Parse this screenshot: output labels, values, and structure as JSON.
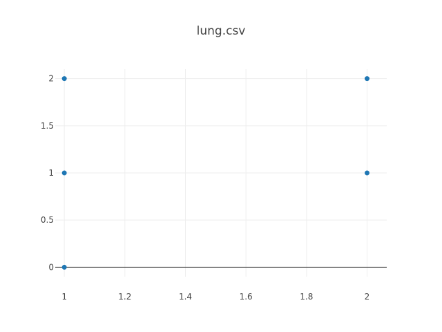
{
  "chart_data": {
    "type": "scatter",
    "title": "lung.csv",
    "xlabel": "",
    "ylabel": "",
    "xlim": [
      0.97,
      2.065
    ],
    "ylim": [
      -0.1,
      2.1
    ],
    "xticks": [
      1,
      1.2,
      1.4,
      1.6,
      1.8,
      2
    ],
    "xtick_labels": [
      "1",
      "1.2",
      "1.4",
      "1.6",
      "1.8",
      "2"
    ],
    "yticks": [
      0,
      0.5,
      1,
      1.5,
      2
    ],
    "ytick_labels": [
      "0",
      "0.5",
      "1",
      "1.5",
      "2"
    ],
    "grid": true,
    "legend": "none",
    "marker_color": "#1f77b4",
    "series": [
      {
        "points": [
          {
            "x": 1,
            "y": 2
          },
          {
            "x": 1,
            "y": 1
          },
          {
            "x": 1,
            "y": 0
          },
          {
            "x": 2,
            "y": 2
          },
          {
            "x": 2,
            "y": 1
          }
        ]
      }
    ]
  }
}
